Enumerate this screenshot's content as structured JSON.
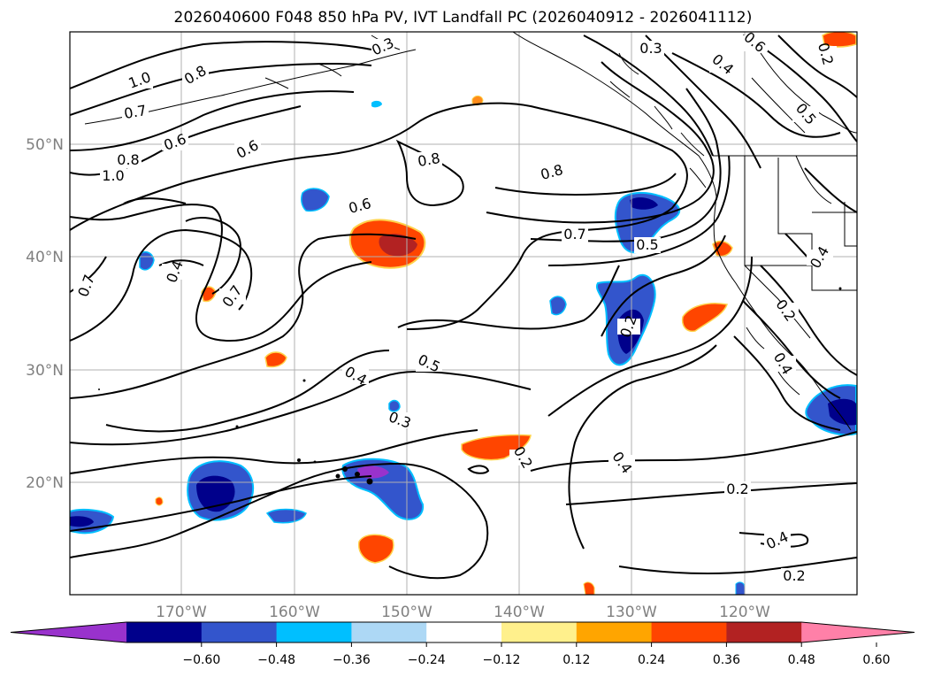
{
  "title": "2026040600 F048 850 hPa PV, IVT Landfall PC (2026040912 - 2026041112)",
  "chart_data": {
    "type": "map",
    "variable_contours": "850 hPa PV",
    "variable_shaded": "IVT Landfall PC",
    "lon_range": [
      -180,
      -110
    ],
    "lat_range": [
      10,
      60
    ],
    "lat_ticks": [
      "50°N",
      "40°N",
      "30°N",
      "20°N"
    ],
    "lon_ticks": [
      "170°W",
      "160°W",
      "150°W",
      "140°W",
      "130°W",
      "120°W"
    ],
    "contour_labels": [
      "1.0",
      "0.8",
      "0.7",
      "0.6",
      "0.6",
      "0.8",
      "1.0",
      "0.6",
      "0.8",
      "0.8",
      "0.7",
      "0.5",
      "0.3",
      "0.4",
      "0.6",
      "0.5",
      "0.4",
      "0.7",
      "0.7",
      "0.4",
      "0.5",
      "0.4",
      "0.3",
      "0.2",
      "0.4",
      "0.2",
      "0.2",
      "0.4",
      "0.2",
      "0.2",
      "0.4",
      "0.2",
      "0.3"
    ],
    "colorbar": {
      "colors": [
        "#9932cc",
        "#00008b",
        "#3355cc",
        "#00bfff",
        "#add8f5",
        "#ffffff",
        "#fff08c",
        "#ffa500",
        "#ff4500",
        "#b22222",
        "#ff80a8"
      ],
      "tick_labels": [
        "−0.60",
        "−0.48",
        "−0.36",
        "−0.24",
        "−0.12",
        "0.12",
        "0.24",
        "0.36",
        "0.48",
        "0.60"
      ]
    }
  }
}
